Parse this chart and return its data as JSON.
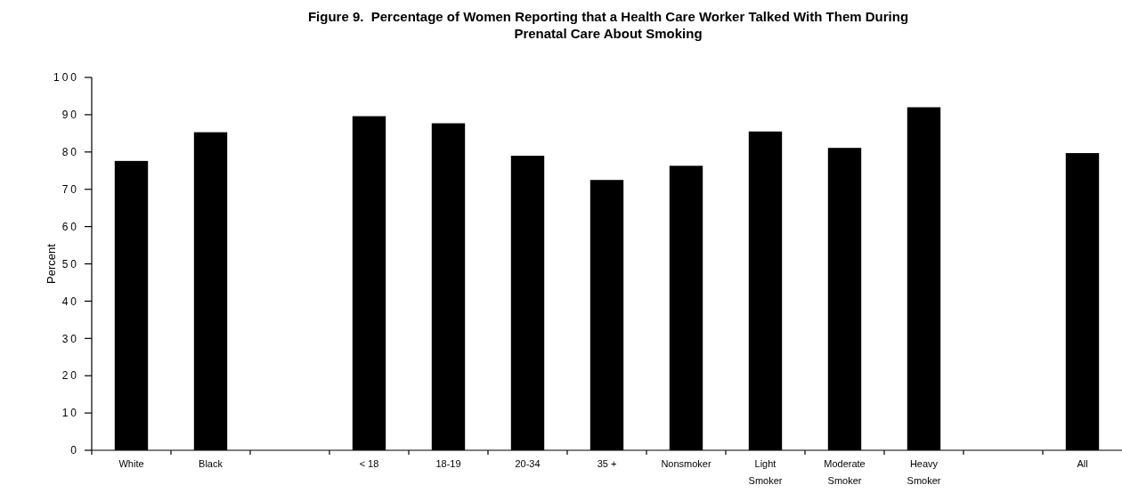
{
  "chart_data": {
    "type": "bar",
    "title": "Figure 9.  Percentage of Women Reporting that a Health Care Worker Talked With Them During Prenatal Care About Smoking",
    "ylabel": "Percent",
    "categories": [
      "White",
      "Black",
      null,
      "< 18",
      "18-19",
      "20-34",
      "35 +",
      "Nonsmoker",
      "Light Smoker",
      "Moderate Smoker",
      "Heavy Smoker",
      null,
      "All"
    ],
    "values": [
      77.6,
      85.3,
      null,
      89.6,
      87.7,
      79.0,
      72.5,
      76.3,
      85.5,
      81.1,
      92.0,
      null,
      79.7
    ],
    "color": "#000000",
    "ylim": [
      0,
      100
    ],
    "yticks": [
      0,
      10,
      20,
      30,
      40,
      50,
      60,
      70,
      80,
      90,
      100
    ],
    "grid": false
  }
}
